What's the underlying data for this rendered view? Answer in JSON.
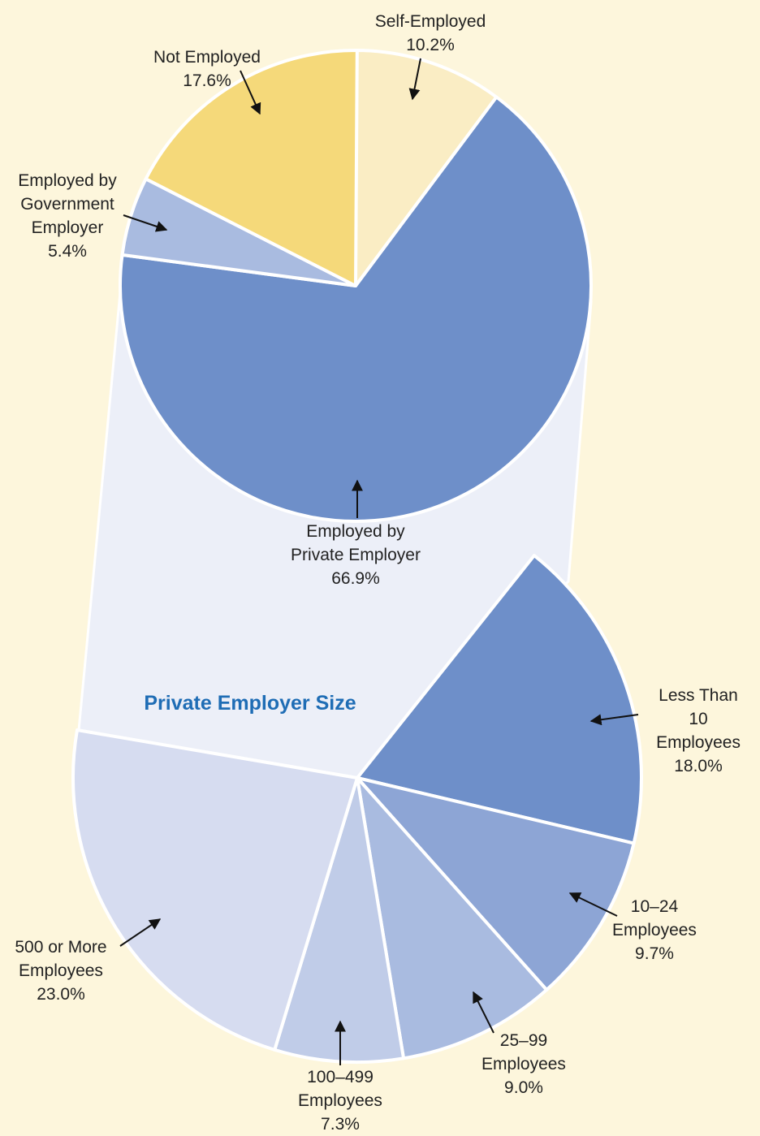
{
  "chart_data": [
    {
      "type": "pie",
      "categories": [
        "Self-Employed",
        "Employed by\nPrivate Employer",
        "Employed by\nGovernment\nEmployer",
        "Not Employed"
      ],
      "values": [
        10.2,
        66.9,
        5.4,
        17.6
      ],
      "value_labels": [
        "10.2%",
        "66.9%",
        "5.4%",
        "17.6%"
      ],
      "colors": [
        "#faedc4",
        "#6e8fc9",
        "#a9bbe0",
        "#f5d97a"
      ]
    },
    {
      "type": "pie",
      "title": "Private Employer Size",
      "categories": [
        "Less Than\n10 Employees",
        "10–24\nEmployees",
        "25–99\nEmployees",
        "100–499\nEmployees",
        "500 or More\nEmployees"
      ],
      "values": [
        18.0,
        9.7,
        9.0,
        7.3,
        23.0
      ],
      "value_labels": [
        "18.0%",
        "9.7%",
        "9.0%",
        "7.3%",
        "23.0%"
      ],
      "colors": [
        "#6e8fc9",
        "#8da5d5",
        "#a9bbe0",
        "#c0cce8",
        "#d6dcf0"
      ]
    }
  ]
}
